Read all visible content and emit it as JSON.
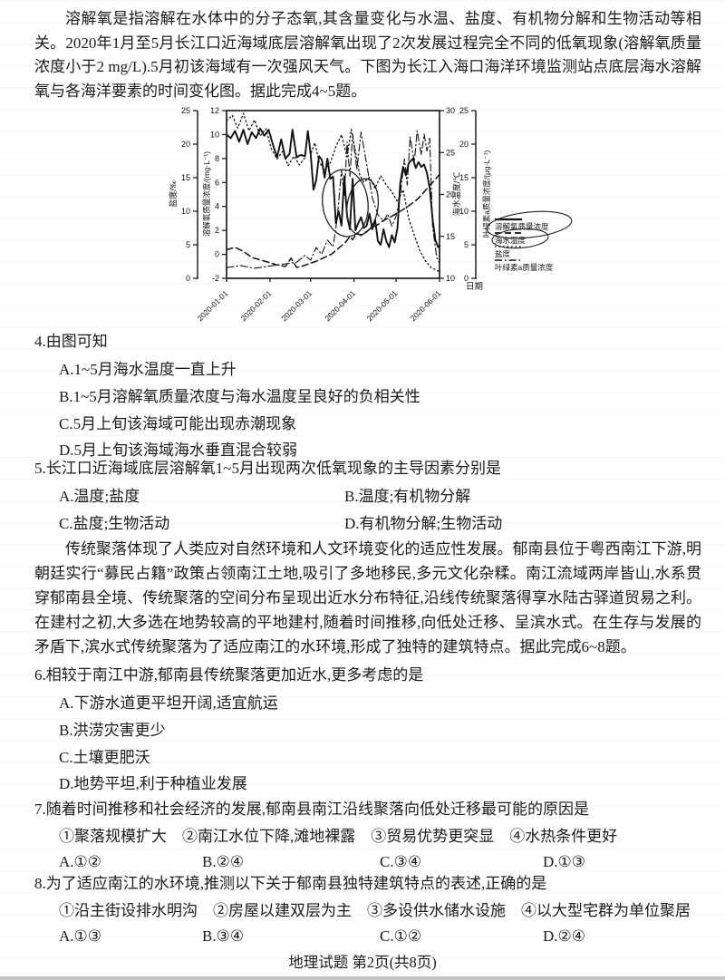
{
  "doc": {
    "footer": "地理试题 第2页(共8页)"
  },
  "intro1": "溶解氧是指溶解在水体中的分子态氧,其含量变化与水温、盐度、有机物分解和生物活动等相关。2020年1月至5月长江口近海域底层溶解氧出现了2次发展过程完全不同的低氧现象(溶解氧质量浓度小于2 mg/L).5月初该海域有一次强风天气。下图为长江入海口海洋环境监测站点底层海水溶解氧与各海洋要素的时间变化图。据此完成4~5题。",
  "intro2": "传统聚落体现了人类应对自然环境和人文环境变化的适应性发展。郁南县位于粤西南江下游,明朝廷实行“募民占籍”政策占领南江土地,吸引了多地移民,多元文化杂糅。南江流域两岸皆山,水系贯穿郁南县全境、传统聚落的空间分布呈现出近水分布特征,沿线传统聚落得享水陆古驿道贸易之利。在建村之初,大多选在地势较高的平地建村,随着时间推移,向低处迁移、呈滨水式。在生存与发展的矛盾下,滨水式传统聚落为了适应南江的水环境,形成了独特的建筑特点。据此完成6~8题。",
  "questions": [
    {
      "stem": "4.由图可知",
      "options": [
        "A.1~5月海水温度一直上升",
        "B.1~5月溶解氧质量浓度与海水温度呈良好的负相关性",
        "C.5月上旬该海域可能出现赤潮现象",
        "D.5月上旬该海域海水垂直混合较弱"
      ]
    },
    {
      "stem": "5.长江口近海域底层溶解氧1~5月出现两次低氧现象的主导因素分别是",
      "options": [
        "A.温度;盐度",
        "B.温度;有机物分解",
        "C.盐度;生物活动",
        "D.有机物分解;生物活动"
      ]
    },
    {
      "stem": "6.相较于南江中游,郁南县传统聚落更加近水,更多考虑的是",
      "options": [
        "A.下游水道更平坦开阔,适宜航运",
        "B.洪涝灾害更少",
        "C.土壤更肥沃",
        "D.地势平坦,利于种植业发展"
      ]
    },
    {
      "stem": "7.随着时间推移和社会经济的发展,郁南县南江沿线聚落向低处迁移最可能的原因是",
      "items": "①聚落规模扩大　②南江水位下降,滩地裸露　③贸易优势更突显　④水热条件更好",
      "options": [
        "A.①②",
        "B.②④",
        "C.③④",
        "D.①③"
      ]
    },
    {
      "stem": "8.为了适应南江的水环境,推测以下关于郁南县独特建筑特点的表述,正确的是",
      "items": "①沿主街设排水明沟　②房屋以建双层为主　③多设供水储水设施　④以大型宅群为单位聚居",
      "options": [
        "A.①③",
        "B.③④",
        "C.①②",
        "D.②④"
      ]
    }
  ],
  "chart_data": {
    "type": "line",
    "title": "长江入海口海洋环境监测站点底层海水溶解氧与各海洋要素的时间变化图",
    "xlabel": "日期",
    "x_ticks": [
      "2020-01-01",
      "2020-02-01",
      "2020-03-01",
      "2020-04-01",
      "2020-05-01",
      "2020-06-01"
    ],
    "x_tick_days": [
      0,
      31,
      60,
      91,
      121,
      152
    ],
    "x_range_days": [
      0,
      152
    ],
    "axes": [
      {
        "id": "salinity",
        "label": "盐度/‰",
        "side": "left-outer",
        "range": [
          0,
          25
        ],
        "ticks": [
          0,
          5,
          10,
          15,
          20,
          25
        ]
      },
      {
        "id": "do",
        "label": "溶解氧质量浓度/(mg·L⁻¹)",
        "side": "left-inner",
        "range": [
          -2,
          12
        ],
        "ticks": [
          -2,
          0,
          2,
          4,
          6,
          8,
          10,
          12
        ]
      },
      {
        "id": "temp",
        "label": "海水温度/℃",
        "side": "right-inner",
        "range": [
          10,
          30
        ],
        "ticks": [
          10,
          15,
          20,
          25,
          30
        ]
      },
      {
        "id": "chl",
        "label": "叶绿素a质量浓度/(μg·L⁻¹)",
        "side": "right-outer",
        "range": [
          0,
          25
        ],
        "ticks": [
          0,
          5,
          10,
          15,
          20,
          25
        ]
      }
    ],
    "series": [
      {
        "name": "溶解氧质量浓度",
        "axis": "do",
        "style": "solid",
        "points": [
          [
            0,
            10.0
          ],
          [
            3,
            9.7
          ],
          [
            6,
            10.3
          ],
          [
            9,
            9.4
          ],
          [
            12,
            10.4
          ],
          [
            15,
            9.2
          ],
          [
            18,
            10.2
          ],
          [
            21,
            9.7
          ],
          [
            24,
            10.5
          ],
          [
            27,
            9.9
          ],
          [
            30,
            10.4
          ],
          [
            33,
            9.2
          ],
          [
            36,
            8.1
          ],
          [
            39,
            9.6
          ],
          [
            42,
            8.0
          ],
          [
            45,
            8.4
          ],
          [
            47,
            10.4
          ],
          [
            50,
            8.1
          ],
          [
            53,
            8.3
          ],
          [
            56,
            8.2
          ],
          [
            58,
            10.3
          ],
          [
            60,
            8.4
          ],
          [
            62,
            5.4
          ],
          [
            64,
            6.2
          ],
          [
            66,
            8.2
          ],
          [
            68,
            7.9
          ],
          [
            70,
            6.4
          ],
          [
            72,
            8.0
          ],
          [
            74,
            6.3
          ],
          [
            76,
            6.5
          ],
          [
            78,
            2.6
          ],
          [
            80,
            3.6
          ],
          [
            82,
            2.4
          ],
          [
            84,
            6.5
          ],
          [
            86,
            3.2
          ],
          [
            88,
            2.1
          ],
          [
            90,
            6.3
          ],
          [
            92,
            2.0
          ],
          [
            94,
            2.6
          ],
          [
            96,
            3.1
          ],
          [
            98,
            2.2
          ],
          [
            100,
            2.4
          ],
          [
            102,
            3.4
          ],
          [
            104,
            2.1
          ],
          [
            106,
            2.9
          ],
          [
            108,
            1.1
          ],
          [
            110,
            0.8
          ],
          [
            112,
            2.1
          ],
          [
            114,
            1.1
          ],
          [
            116,
            0.6
          ],
          [
            118,
            1.6
          ],
          [
            120,
            1.0
          ],
          [
            122,
            2.2
          ],
          [
            124,
            6.0
          ],
          [
            126,
            7.3
          ],
          [
            128,
            6.6
          ],
          [
            130,
            7.6
          ],
          [
            133,
            8.0
          ],
          [
            135,
            7.2
          ],
          [
            137,
            7.7
          ],
          [
            139,
            7.3
          ],
          [
            141,
            7.5
          ],
          [
            143,
            6.8
          ],
          [
            145,
            5.5
          ],
          [
            147,
            3.0
          ],
          [
            149,
            1.2
          ],
          [
            151,
            0.6
          ],
          [
            152,
            0.7
          ]
        ]
      },
      {
        "name": "海水温度",
        "axis": "temp",
        "style": "dashed",
        "points": [
          [
            0,
            13.4
          ],
          [
            6,
            13.7
          ],
          [
            12,
            13.2
          ],
          [
            18,
            12.5
          ],
          [
            24,
            12.2
          ],
          [
            30,
            11.9
          ],
          [
            36,
            11.6
          ],
          [
            42,
            11.4
          ],
          [
            46,
            12.4
          ],
          [
            50,
            11.3
          ],
          [
            55,
            11.5
          ],
          [
            60,
            11.8
          ],
          [
            65,
            12.1
          ],
          [
            70,
            12.5
          ],
          [
            75,
            12.9
          ],
          [
            80,
            13.6
          ],
          [
            85,
            14.3
          ],
          [
            88,
            15.0
          ],
          [
            90,
            14.6
          ],
          [
            93,
            15.4
          ],
          [
            96,
            15.1
          ],
          [
            100,
            15.6
          ],
          [
            104,
            16.1
          ],
          [
            108,
            16.4
          ],
          [
            112,
            16.9
          ],
          [
            116,
            17.2
          ],
          [
            120,
            17.6
          ],
          [
            124,
            18.0
          ],
          [
            128,
            18.4
          ],
          [
            132,
            18.9
          ],
          [
            136,
            19.4
          ],
          [
            140,
            20.1
          ],
          [
            144,
            20.9
          ],
          [
            148,
            21.6
          ],
          [
            152,
            22.4
          ]
        ]
      },
      {
        "name": "盐度",
        "axis": "salinity",
        "style": "dotted",
        "points": [
          [
            0,
            23.5
          ],
          [
            4,
            24.3
          ],
          [
            8,
            22.4
          ],
          [
            12,
            24.6
          ],
          [
            16,
            22.0
          ],
          [
            20,
            23.6
          ],
          [
            24,
            21.2
          ],
          [
            28,
            22.3
          ],
          [
            32,
            19.3
          ],
          [
            36,
            17.8
          ],
          [
            40,
            18.9
          ],
          [
            44,
            16.8
          ],
          [
            48,
            18.2
          ],
          [
            52,
            16.9
          ],
          [
            56,
            18.0
          ],
          [
            58,
            21.9
          ],
          [
            60,
            18.5
          ],
          [
            63,
            20.2
          ],
          [
            66,
            17.4
          ],
          [
            70,
            16.1
          ],
          [
            74,
            17.2
          ],
          [
            78,
            19.6
          ],
          [
            82,
            21.4
          ],
          [
            86,
            18.1
          ],
          [
            89,
            22.2
          ],
          [
            92,
            18.9
          ],
          [
            95,
            15.4
          ],
          [
            98,
            14.3
          ],
          [
            102,
            15.1
          ],
          [
            106,
            13.4
          ],
          [
            110,
            15.3
          ],
          [
            114,
            13.9
          ],
          [
            118,
            12.9
          ],
          [
            122,
            11.4
          ],
          [
            126,
            13.2
          ],
          [
            130,
            8.9
          ],
          [
            134,
            6.4
          ],
          [
            138,
            4.1
          ],
          [
            142,
            2.6
          ],
          [
            146,
            1.6
          ],
          [
            152,
            1.0
          ]
        ]
      },
      {
        "name": "叶绿素a质量浓度",
        "axis": "chl",
        "style": "dashdot",
        "points": [
          [
            0,
            1.6
          ],
          [
            10,
            1.9
          ],
          [
            20,
            1.5
          ],
          [
            30,
            1.8
          ],
          [
            40,
            2.1
          ],
          [
            50,
            2.4
          ],
          [
            56,
            3.4
          ],
          [
            60,
            2.7
          ],
          [
            64,
            4.6
          ],
          [
            68,
            3.6
          ],
          [
            72,
            5.7
          ],
          [
            76,
            4.7
          ],
          [
            79,
            8.9
          ],
          [
            82,
            16.1
          ],
          [
            84,
            12.3
          ],
          [
            86,
            20.3
          ],
          [
            88,
            15.2
          ],
          [
            90,
            21.4
          ],
          [
            93,
            16.2
          ],
          [
            96,
            21.8
          ],
          [
            100,
            17.0
          ],
          [
            104,
            12.0
          ],
          [
            108,
            9.5
          ],
          [
            112,
            8.5
          ],
          [
            115,
            9.6
          ],
          [
            118,
            7.8
          ],
          [
            121,
            9.3
          ],
          [
            124,
            12.5
          ],
          [
            127,
            17.8
          ],
          [
            129,
            13.9
          ],
          [
            131,
            21.1
          ],
          [
            134,
            17.3
          ],
          [
            136,
            22.0
          ],
          [
            139,
            18.4
          ],
          [
            141,
            21.5
          ],
          [
            143,
            19.0
          ],
          [
            145,
            20.9
          ],
          [
            147,
            7.8
          ],
          [
            150,
            3.1
          ],
          [
            152,
            2.3
          ]
        ]
      }
    ],
    "legend": {
      "position": "right",
      "entries": [
        "溶解氧质量浓度",
        "海水温度",
        "盐度",
        "叶绿素a质量浓度"
      ]
    },
    "annotations": {
      "chart_circles": "手绘椭圆圈出3月下旬至4月中旬溶解氧低值波动区",
      "legend_circles": "图例前两项(溶解氧质量浓度、海水温度)被手绘圈注"
    }
  }
}
